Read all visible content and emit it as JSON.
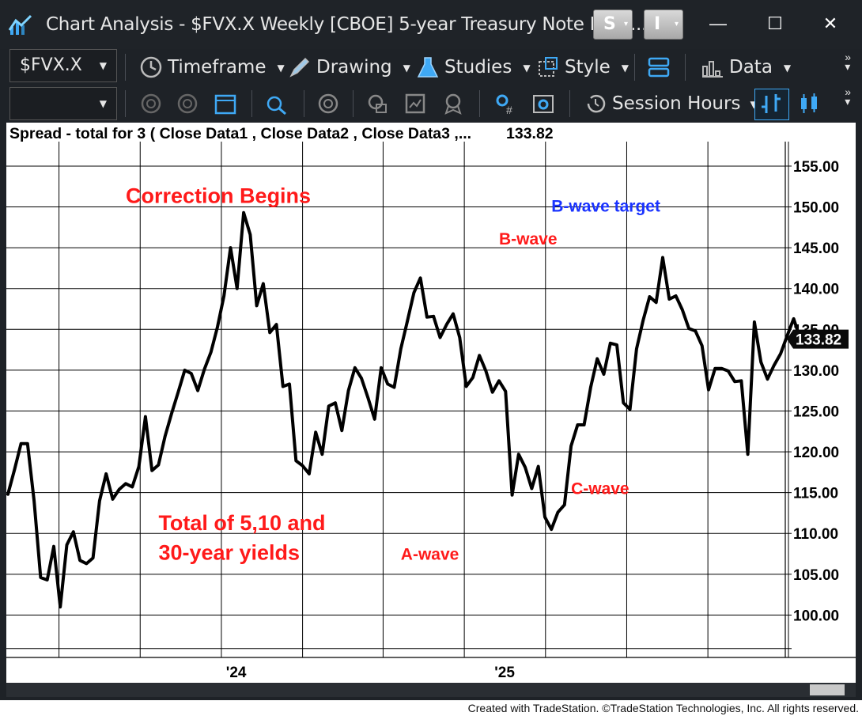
{
  "window": {
    "title": "Chart Analysis - $FVX.X Weekly [CBOE] 5-year Treasury Note Int R...",
    "s_button": "S",
    "i_button": "I",
    "controls": {
      "minimize": "—",
      "maximize": "☐",
      "close": "✕"
    }
  },
  "toolbar1": {
    "symbol": "$FVX.X",
    "timeframe": "Timeframe",
    "drawing": "Drawing",
    "studies": "Studies",
    "style": "Style",
    "data": "Data"
  },
  "toolbar2": {
    "symbol2": "",
    "session_hours": "Session Hours"
  },
  "footer": {
    "credit": "Created with TradeStation. ©TradeStation Technologies, Inc. All rights reserved."
  },
  "colors": {
    "line": "#000000",
    "annotation_red": "#ff1a1a",
    "annotation_blue": "#1a33ff",
    "last_price_bg": "#0a0a0a",
    "app_bg": "#1e2227"
  },
  "chart_data": {
    "type": "line",
    "title": "Spread - total for 3 ( Close Data1 , Close Data2 , Close Data3 ,...",
    "last_value_label": "133.82",
    "x_tick_labels": [
      {
        "label": "'24",
        "index": 35
      },
      {
        "label": "'25",
        "index": 76
      }
    ],
    "y_ticks": [
      100,
      105,
      110,
      115,
      120,
      125,
      130,
      135,
      140,
      145,
      150,
      155
    ],
    "y_tick_labels": [
      "100.00",
      "105.00",
      "110.00",
      "115.00",
      "120.00",
      "125.00",
      "130.00",
      "135.00",
      "140.00",
      "145.00",
      "150.00",
      "155.00"
    ],
    "ylim": [
      95,
      158
    ],
    "grid": true,
    "annotations": [
      {
        "text": "Correction Begins",
        "color": "red",
        "x_index": 18,
        "y": 150.5,
        "size": "large"
      },
      {
        "text": "Total of 5,10 and",
        "color": "red",
        "x_index": 23,
        "y": 110.4,
        "size": "large"
      },
      {
        "text": "30-year yields",
        "color": "red",
        "x_index": 23,
        "y": 106.8,
        "size": "large"
      },
      {
        "text": "B-wave target",
        "color": "blue",
        "x_index": 83,
        "y": 149.4,
        "size": "medium"
      },
      {
        "text": "B-wave",
        "color": "red",
        "x_index": 75,
        "y": 145.4,
        "size": "medium"
      },
      {
        "text": "A-wave",
        "color": "red",
        "x_index": 60,
        "y": 106.8,
        "size": "medium"
      },
      {
        "text": "C-wave",
        "color": "red",
        "x_index": 86,
        "y": 114.8,
        "size": "medium"
      }
    ],
    "series": [
      {
        "values": [
          114.8,
          117.8,
          121.0,
          121.0,
          114.0,
          104.6,
          104.3,
          108.4,
          101.0,
          108.6,
          110.2,
          106.7,
          106.3,
          107.0,
          114.0,
          117.3,
          114.2,
          115.4,
          116.1,
          115.7,
          118.2,
          124.3,
          117.7,
          118.4,
          121.9,
          124.7,
          127.3,
          130.0,
          129.6,
          127.5,
          130.1,
          132.2,
          135.3,
          139.1,
          145.0,
          140.0,
          149.3,
          146.6,
          137.9,
          140.6,
          134.6,
          135.6,
          128.0,
          128.3,
          118.9,
          118.3,
          117.3,
          122.4,
          119.7,
          125.6,
          126.0,
          122.6,
          127.5,
          130.3,
          129.0,
          126.6,
          124.0,
          130.3,
          128.3,
          127.9,
          132.6,
          136.0,
          139.5,
          141.3,
          136.5,
          136.6,
          134.0,
          135.6,
          136.9,
          134.0,
          128.0,
          129.1,
          131.8,
          129.9,
          127.3,
          128.7,
          127.4,
          114.7,
          119.7,
          118.1,
          115.5,
          118.2,
          112.0,
          110.5,
          112.6,
          113.5,
          120.7,
          123.3,
          123.3,
          127.9,
          131.4,
          129.5,
          133.3,
          133.1,
          126.0,
          125.2,
          132.6,
          136.1,
          139.0,
          138.3,
          143.8,
          138.7,
          139.1,
          137.4,
          135.1,
          134.8,
          133.0,
          127.6,
          130.2,
          130.2,
          129.9,
          128.6,
          128.7,
          119.7,
          135.9,
          131.0,
          128.9,
          130.6,
          132.0,
          134.2,
          136.3,
          133.8
        ]
      }
    ]
  }
}
